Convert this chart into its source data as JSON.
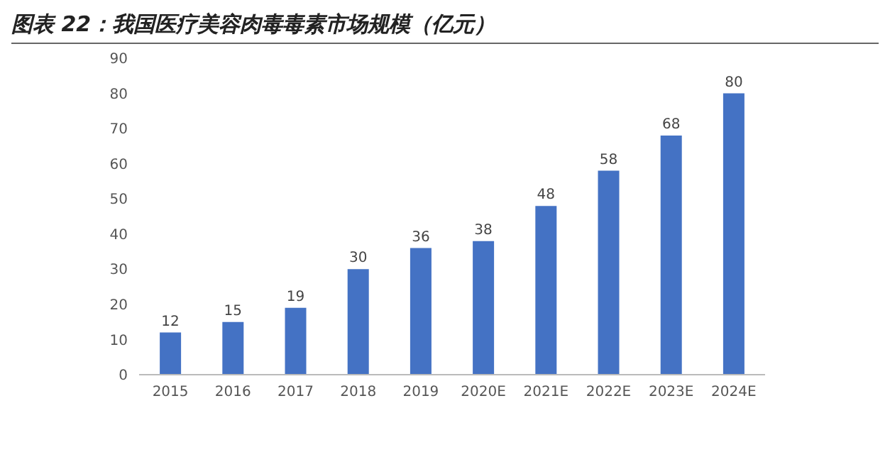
{
  "chart_data": {
    "type": "bar",
    "title": "图表 22：我国医疗美容肉毒毒素市场规模（亿元）",
    "categories": [
      "2015",
      "2016",
      "2017",
      "2018",
      "2019",
      "2020E",
      "2021E",
      "2022E",
      "2023E",
      "2024E"
    ],
    "values": [
      12,
      15,
      19,
      30,
      36,
      38,
      48,
      58,
      68,
      80
    ],
    "color": "#4472c4",
    "ylim": [
      0,
      90
    ],
    "yticks": [
      0,
      10,
      20,
      30,
      40,
      50,
      60,
      70,
      80,
      90
    ],
    "data_labels": true
  }
}
